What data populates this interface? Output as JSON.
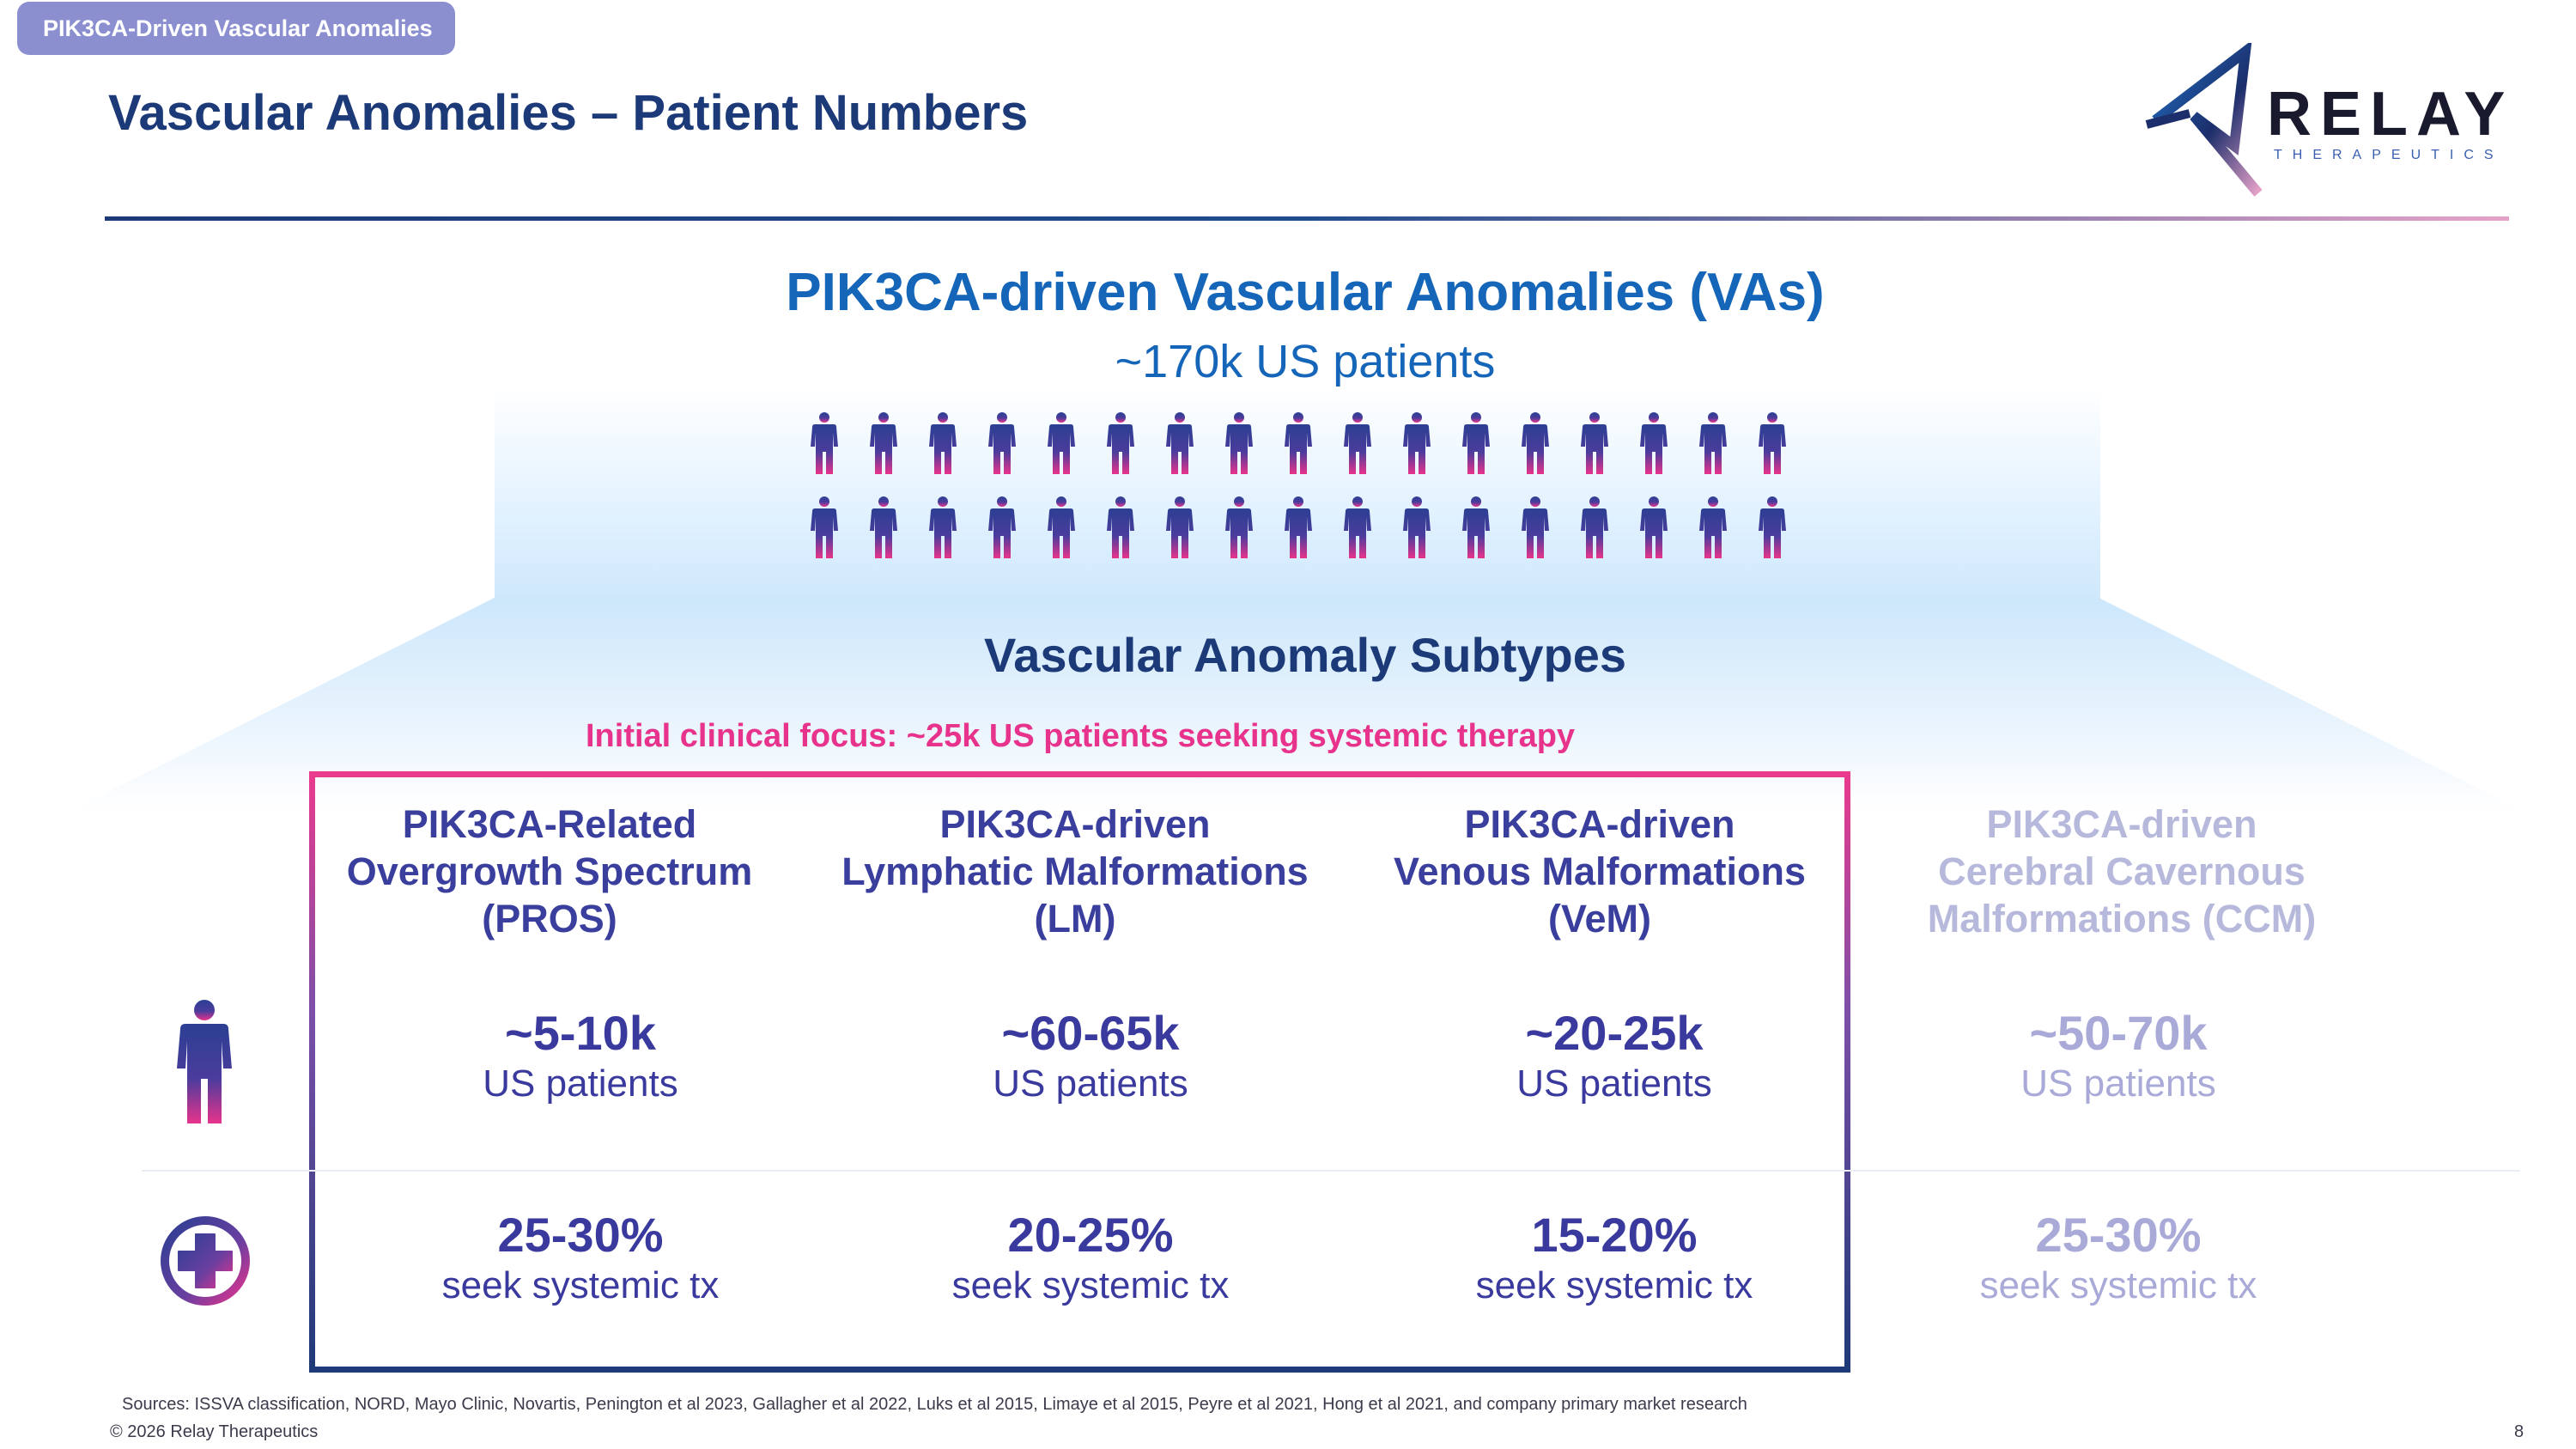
{
  "header": {
    "tag": "PIK3CA-Driven Vascular Anomalies",
    "title": "Vascular Anomalies – Patient Numbers"
  },
  "logo": {
    "word": "RELAY",
    "sub": "THERAPEUTICS"
  },
  "hero": {
    "title": "PIK3CA-driven Vascular Anomalies (VAs)",
    "subtitle": "~170k US patients",
    "icon": "person-icon"
  },
  "subtypes": {
    "title": "Vascular Anomaly Subtypes",
    "focus_note": "Initial clinical focus: ~25k US patients seeking systemic therapy",
    "row_icons": [
      "person-icon",
      "medical-cross-icon"
    ],
    "columns": [
      {
        "head_lines": [
          "PIK3CA-Related",
          "Overgrowth Spectrum",
          "(PROS)"
        ],
        "patients": "~5-10k",
        "patients_label": "US patients",
        "systemic": "25-30%",
        "systemic_label": "seek systemic tx"
      },
      {
        "head_lines": [
          "PIK3CA-driven",
          "Lymphatic Malformations",
          "(LM)"
        ],
        "patients": "~60-65k",
        "patients_label": "US patients",
        "systemic": "20-25%",
        "systemic_label": "seek systemic tx"
      },
      {
        "head_lines": [
          "PIK3CA-driven",
          "Venous Malformations",
          "(VeM)"
        ],
        "patients": "~20-25k",
        "patients_label": "US patients",
        "systemic": "15-20%",
        "systemic_label": "seek systemic tx"
      },
      {
        "head_lines": [
          "PIK3CA-driven",
          "Cerebral Cavernous",
          "Malformations (CCM)"
        ],
        "patients": "~50-70k",
        "patients_label": "US patients",
        "systemic": "25-30%",
        "systemic_label": "seek systemic tx"
      }
    ]
  },
  "footer": {
    "sources": "Sources: ISSVA classification, NORD, Mayo Clinic, Novartis, Penington et al 2023, Gallagher et al 2022, Luks et al 2015, Limaye et al 2015, Peyre et al 2021, Hong et al 2021, and company primary market research",
    "copyright": "© 2026 Relay Therapeutics",
    "page": "8"
  },
  "colors": {
    "navy": "#1c3a78",
    "blue": "#1565b8",
    "pink": "#e8338c",
    "purple": "#3a3a9e",
    "faded": "#a9aad8"
  }
}
